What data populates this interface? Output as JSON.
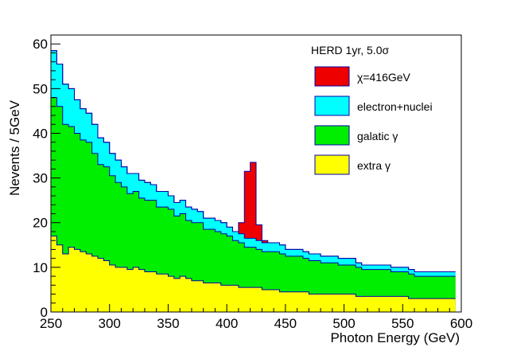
{
  "chart_data": {
    "type": "stacked-step-histogram",
    "title": "HERD 1yr, 5.0σ",
    "xlabel": "Photon Energy (GeV)",
    "ylabel": "Nevents / 5GeV",
    "xlim": [
      250,
      600
    ],
    "ylim": [
      0,
      62
    ],
    "xticks": [
      250,
      300,
      350,
      400,
      450,
      500,
      550,
      600
    ],
    "yticks": [
      0,
      10,
      20,
      30,
      40,
      50,
      60
    ],
    "bin_width": 5,
    "bin_starts": [
      250,
      255,
      260,
      265,
      270,
      275,
      280,
      285,
      290,
      295,
      300,
      305,
      310,
      315,
      320,
      325,
      330,
      335,
      340,
      345,
      350,
      355,
      360,
      365,
      370,
      375,
      380,
      385,
      390,
      395,
      400,
      405,
      410,
      415,
      420,
      425,
      430,
      435,
      440,
      445,
      450,
      455,
      460,
      465,
      470,
      475,
      480,
      485,
      490,
      495,
      500,
      505,
      510,
      515,
      520,
      525,
      530,
      535,
      540,
      545,
      550,
      555,
      560,
      565,
      570,
      575,
      580,
      585,
      590
    ],
    "series": [
      {
        "name": "extra γ",
        "color": "#ffff00",
        "values": [
          17,
          15,
          13,
          14.5,
          14,
          13.5,
          13,
          12.5,
          12,
          11.5,
          10.5,
          10,
          10,
          9.5,
          10,
          9.5,
          9,
          9,
          8.5,
          8.5,
          8,
          7.5,
          8,
          7.5,
          7,
          7,
          6.5,
          6.5,
          6.5,
          6,
          6,
          6,
          5.5,
          5.5,
          5.5,
          5.5,
          5,
          5,
          5,
          4.5,
          4.5,
          4.5,
          4.5,
          4.5,
          4,
          4,
          4,
          4,
          4,
          4,
          4,
          4,
          3.5,
          3.5,
          3.5,
          3.5,
          3.5,
          3.5,
          3.5,
          3.5,
          3.5,
          3,
          3,
          3,
          3,
          3,
          3,
          3,
          3
        ]
      },
      {
        "name": "galatic γ",
        "color": "#00ee00",
        "values": [
          31,
          31,
          29,
          27,
          26,
          25,
          25,
          23,
          21,
          21,
          20,
          19,
          18,
          17,
          17,
          16,
          16,
          16,
          15,
          15,
          15,
          14,
          14,
          13,
          13,
          13,
          12,
          12,
          11.5,
          11.5,
          11,
          10,
          10,
          9,
          9,
          8.5,
          8.5,
          8.5,
          8.5,
          8.5,
          8,
          8,
          8,
          7.5,
          7.5,
          7.5,
          7,
          7,
          7,
          6.5,
          6.5,
          6.5,
          6.5,
          6,
          6,
          6,
          6,
          6,
          5.5,
          5.5,
          5.5,
          5.5,
          5,
          5,
          5,
          5,
          5,
          5,
          5
        ]
      },
      {
        "name": "electron+nuclei",
        "color": "#00ffff",
        "values": [
          10.5,
          9.5,
          9,
          8.5,
          7.5,
          7,
          6.5,
          6.5,
          6,
          5.5,
          5,
          5,
          4.5,
          4.5,
          4,
          4,
          4,
          3.5,
          3.5,
          3.5,
          3,
          3,
          3,
          3,
          3,
          2.5,
          2.5,
          2.5,
          2.5,
          2.5,
          2,
          2,
          2,
          2,
          2,
          2,
          2,
          2,
          2,
          2,
          1.5,
          1.5,
          1.5,
          1.5,
          1.5,
          1.5,
          1.5,
          1.5,
          1.5,
          1.5,
          1.5,
          1.5,
          1,
          1,
          1,
          1,
          1,
          1,
          1,
          1,
          1,
          1,
          1,
          1,
          1,
          1,
          1,
          1,
          1
        ]
      },
      {
        "name": "χ=416GeV",
        "color": "#ee0000",
        "values": [
          0,
          0,
          0,
          0,
          0,
          0,
          0,
          0,
          0,
          0,
          0,
          0,
          0,
          0,
          0,
          0,
          0,
          0,
          0,
          0,
          0,
          0,
          0,
          0,
          0,
          0,
          0,
          0,
          0,
          0,
          0,
          0,
          2.5,
          15,
          17,
          3.5,
          0.5,
          0,
          0,
          0,
          0,
          0,
          0,
          0,
          0,
          0,
          0,
          0,
          0,
          0,
          0,
          0,
          0,
          0,
          0,
          0,
          0,
          0,
          0,
          0,
          0,
          0,
          0,
          0,
          0,
          0,
          0,
          0,
          0
        ]
      }
    ],
    "legend": [
      {
        "label": "χ=416GeV",
        "color": "#ee0000"
      },
      {
        "label": "electron+nuclei",
        "color": "#00ffff"
      },
      {
        "label": "galatic γ",
        "color": "#00ee00"
      },
      {
        "label": "extra γ",
        "color": "#ffff00"
      }
    ],
    "legend_position": "top-right"
  }
}
